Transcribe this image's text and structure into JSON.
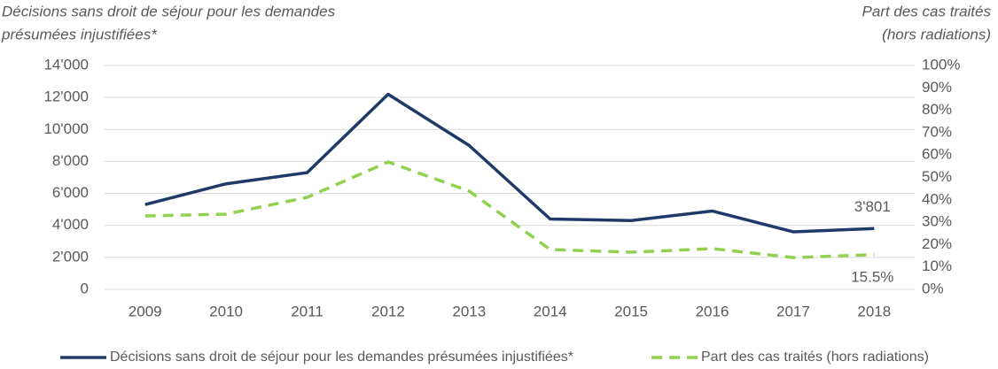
{
  "chart_data": {
    "type": "line",
    "y_label": [
      "Décisions sans droit de séjour pour les demandes",
      "présumées injustifiées*"
    ],
    "y2_label": [
      "Part des cas traités",
      "(hors radiations)"
    ],
    "categories": [
      "2009",
      "2010",
      "2011",
      "2012",
      "2013",
      "2014",
      "2015",
      "2016",
      "2017",
      "2018"
    ],
    "series": [
      {
        "name": "Décisions sans droit de séjour pour les demandes présumées injustifiées*",
        "color": "#1f3a68",
        "line_style": "solid",
        "values": [
          5300,
          6600,
          7300,
          12200,
          9000,
          4400,
          4300,
          4900,
          3600,
          3801
        ],
        "value_labels": [
          null,
          null,
          null,
          null,
          null,
          null,
          null,
          null,
          null,
          "3'801"
        ]
      },
      {
        "name": "Part des cas traités (hors radiations)",
        "color": "#92d050",
        "line_style": "dashed",
        "axis": "y2",
        "values": [
          32.8,
          33.6,
          41.1,
          56.9,
          43.9,
          17.8,
          16.6,
          18.2,
          14.2,
          15.5
        ],
        "value_labels": [
          null,
          null,
          null,
          null,
          null,
          null,
          null,
          null,
          null,
          "15.5%"
        ]
      }
    ],
    "ylim": [
      0,
      14000
    ],
    "yticks": [
      0,
      {
        "value": 2000,
        "label": "2'000"
      },
      {
        "value": 4000,
        "label": "4'000"
      },
      {
        "value": 6000,
        "label": "6'000"
      },
      {
        "value": 8000,
        "label": "8'000"
      },
      {
        "value": 10000,
        "label": "10'000"
      },
      {
        "value": 12000,
        "label": "12'000"
      },
      {
        "value": 14000,
        "label": "14'000"
      }
    ],
    "y2lim": [
      0,
      100
    ],
    "y2ticks": [
      {
        "value": 0,
        "label": "0%"
      },
      {
        "value": 10,
        "label": "10%"
      },
      {
        "value": 20,
        "label": "20%"
      },
      {
        "value": 30,
        "label": "30%"
      },
      {
        "value": 40,
        "label": "40%"
      },
      {
        "value": 50,
        "label": "50%"
      },
      {
        "value": 60,
        "label": "60%"
      },
      {
        "value": 70,
        "label": "70%"
      },
      {
        "value": 80,
        "label": "80%"
      },
      {
        "value": 90,
        "label": "90%"
      },
      {
        "value": 100,
        "label": "100%"
      }
    ],
    "grid": true,
    "legend": "bottom"
  }
}
